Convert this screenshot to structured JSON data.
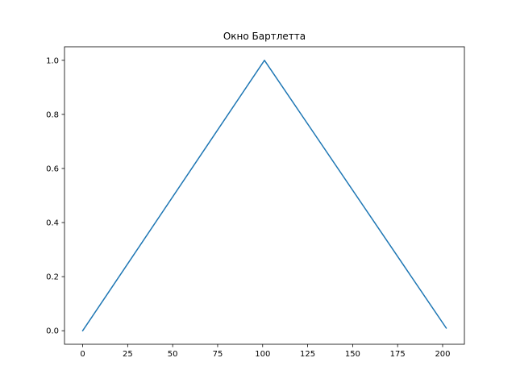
{
  "chart_data": {
    "type": "line",
    "title": "Окно Бартлетта",
    "xlabel": "",
    "ylabel": "",
    "xlim": [
      -10.1,
      212.1
    ],
    "ylim": [
      -0.05,
      1.05
    ],
    "xticks": [
      0,
      25,
      50,
      75,
      100,
      125,
      150,
      175,
      200
    ],
    "yticks": [
      0.0,
      0.2,
      0.4,
      0.6,
      0.8,
      1.0
    ],
    "xtick_labels": [
      "0",
      "25",
      "50",
      "75",
      "100",
      "125",
      "150",
      "175",
      "200"
    ],
    "ytick_labels": [
      "0.0",
      "0.2",
      "0.4",
      "0.6",
      "0.8",
      "1.0"
    ],
    "grid": false,
    "series": [
      {
        "color": "#1f77b4",
        "x": [
          0,
          101,
          202
        ],
        "y": [
          0.0,
          1.0,
          0.01
        ]
      }
    ]
  }
}
